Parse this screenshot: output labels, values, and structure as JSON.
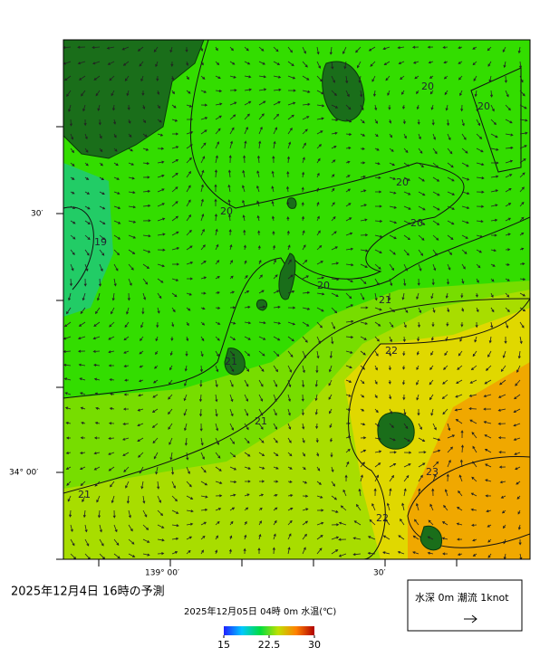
{
  "header": {
    "title": "2025年12月4日 16時の予測",
    "subtitle": "2025年12月05日 04時 0m 水温(℃)"
  },
  "axes": {
    "lat_labels": [
      "30′",
      "34° 00′"
    ],
    "lon_labels": [
      "139° 00′",
      "30′"
    ]
  },
  "contour_labels": [
    "20",
    "20",
    "20",
    "20",
    "20",
    "20",
    "19",
    "21",
    "21",
    "21",
    "22",
    "23",
    "21",
    "22"
  ],
  "colorbar": {
    "min": 15,
    "max": 30,
    "ticks": [
      15,
      22.5,
      30
    ]
  },
  "legend": {
    "text": "水深 0m 潮流 1knot"
  }
}
